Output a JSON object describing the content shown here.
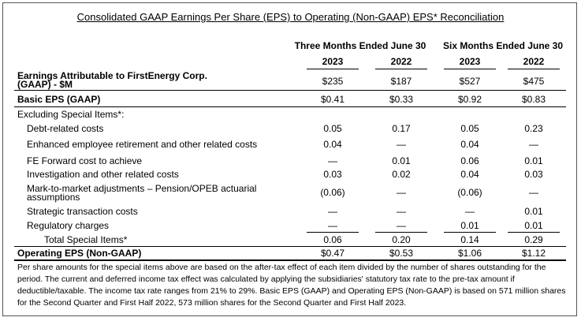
{
  "title": "Consolidated GAAP Earnings Per Share (EPS) to Operating (Non-GAAP) EPS* Reconciliation",
  "headers": {
    "three_months": "Three Months Ended June 30",
    "six_months": "Six Months Ended June 30",
    "years": [
      "2023",
      "2022",
      "2023",
      "2022"
    ]
  },
  "rows": [
    {
      "label": "Earnings Attributable to FirstEnergy Corp. (GAAP) - $M",
      "values": [
        "$235",
        "$187",
        "$527",
        "$475"
      ]
    },
    {
      "label": "Basic EPS (GAAP)",
      "values": [
        "$0.41",
        "$0.33",
        "$0.92",
        "$0.83"
      ]
    },
    {
      "label": "Excluding Special Items*:",
      "values": [
        "",
        "",
        "",
        ""
      ]
    },
    {
      "label": "Debt-related costs",
      "values": [
        "0.05",
        "0.17",
        "0.05",
        "0.23"
      ]
    },
    {
      "label": "Enhanced employee retirement and other related costs",
      "values": [
        "0.04",
        "—",
        "0.04",
        "—"
      ]
    },
    {
      "label": "FE Forward cost to achieve",
      "values": [
        "—",
        "0.01",
        "0.06",
        "0.01"
      ]
    },
    {
      "label": "Investigation and other related costs",
      "values": [
        "0.03",
        "0.02",
        "0.04",
        "0.03"
      ]
    },
    {
      "label": "Mark-to-market adjustments – Pension/OPEB actuarial assumptions",
      "values": [
        "(0.06)",
        "—",
        "(0.06)",
        "—"
      ]
    },
    {
      "label": "Strategic transaction costs",
      "values": [
        "—",
        "—",
        "—",
        "0.01"
      ]
    },
    {
      "label": "Regulatory charges",
      "values": [
        "—",
        "—",
        "0.01",
        "0.01"
      ]
    },
    {
      "label": "Total Special Items*",
      "values": [
        "0.06",
        "0.20",
        "0.14",
        "0.29"
      ]
    },
    {
      "label": "Operating EPS (Non-GAAP)",
      "values": [
        "$0.47",
        "$0.53",
        "$1.06",
        "$1.12"
      ]
    }
  ],
  "footnote": "Per share amounts for the special items above are based on the after-tax effect of each item divided by the number of shares outstanding for the period. The current and deferred income tax effect was calculated by applying the subsidiaries' statutory tax rate to the pre-tax amount if deductible/taxable. The income tax rate ranges from 21% to 29%. Basic EPS (GAAP) and Operating EPS (Non-GAAP) is based on 571 million shares for the Second Quarter and First Half 2022, 573 million shares for the Second Quarter and First Half 2023."
}
